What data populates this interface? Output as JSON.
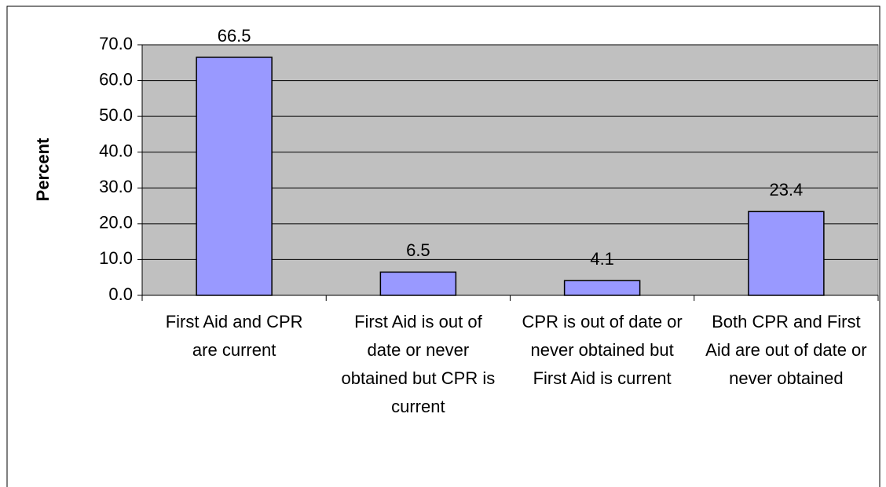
{
  "chart_data": {
    "type": "bar",
    "y_label": "Percent",
    "categories": [
      "First Aid and CPR are current",
      "First Aid is out of date or never obtained but CPR is current",
      "CPR is out of date or never obtained but First Aid is current",
      "Both CPR and First Aid are out of date or never obtained"
    ],
    "values": [
      66.5,
      6.5,
      4.1,
      23.4
    ],
    "color": "#9999ff",
    "ylim": [
      0,
      70
    ],
    "yticks": [
      {
        "value": 0,
        "label": "0.0"
      },
      {
        "value": 10,
        "label": "10.0"
      },
      {
        "value": 20,
        "label": "20.0"
      },
      {
        "value": 30,
        "label": "30.0"
      },
      {
        "value": 40,
        "label": "40.0"
      },
      {
        "value": 50,
        "label": "50.0"
      },
      {
        "value": 60,
        "label": "60.0"
      },
      {
        "value": 70,
        "label": "70.0"
      }
    ],
    "grid": true
  }
}
